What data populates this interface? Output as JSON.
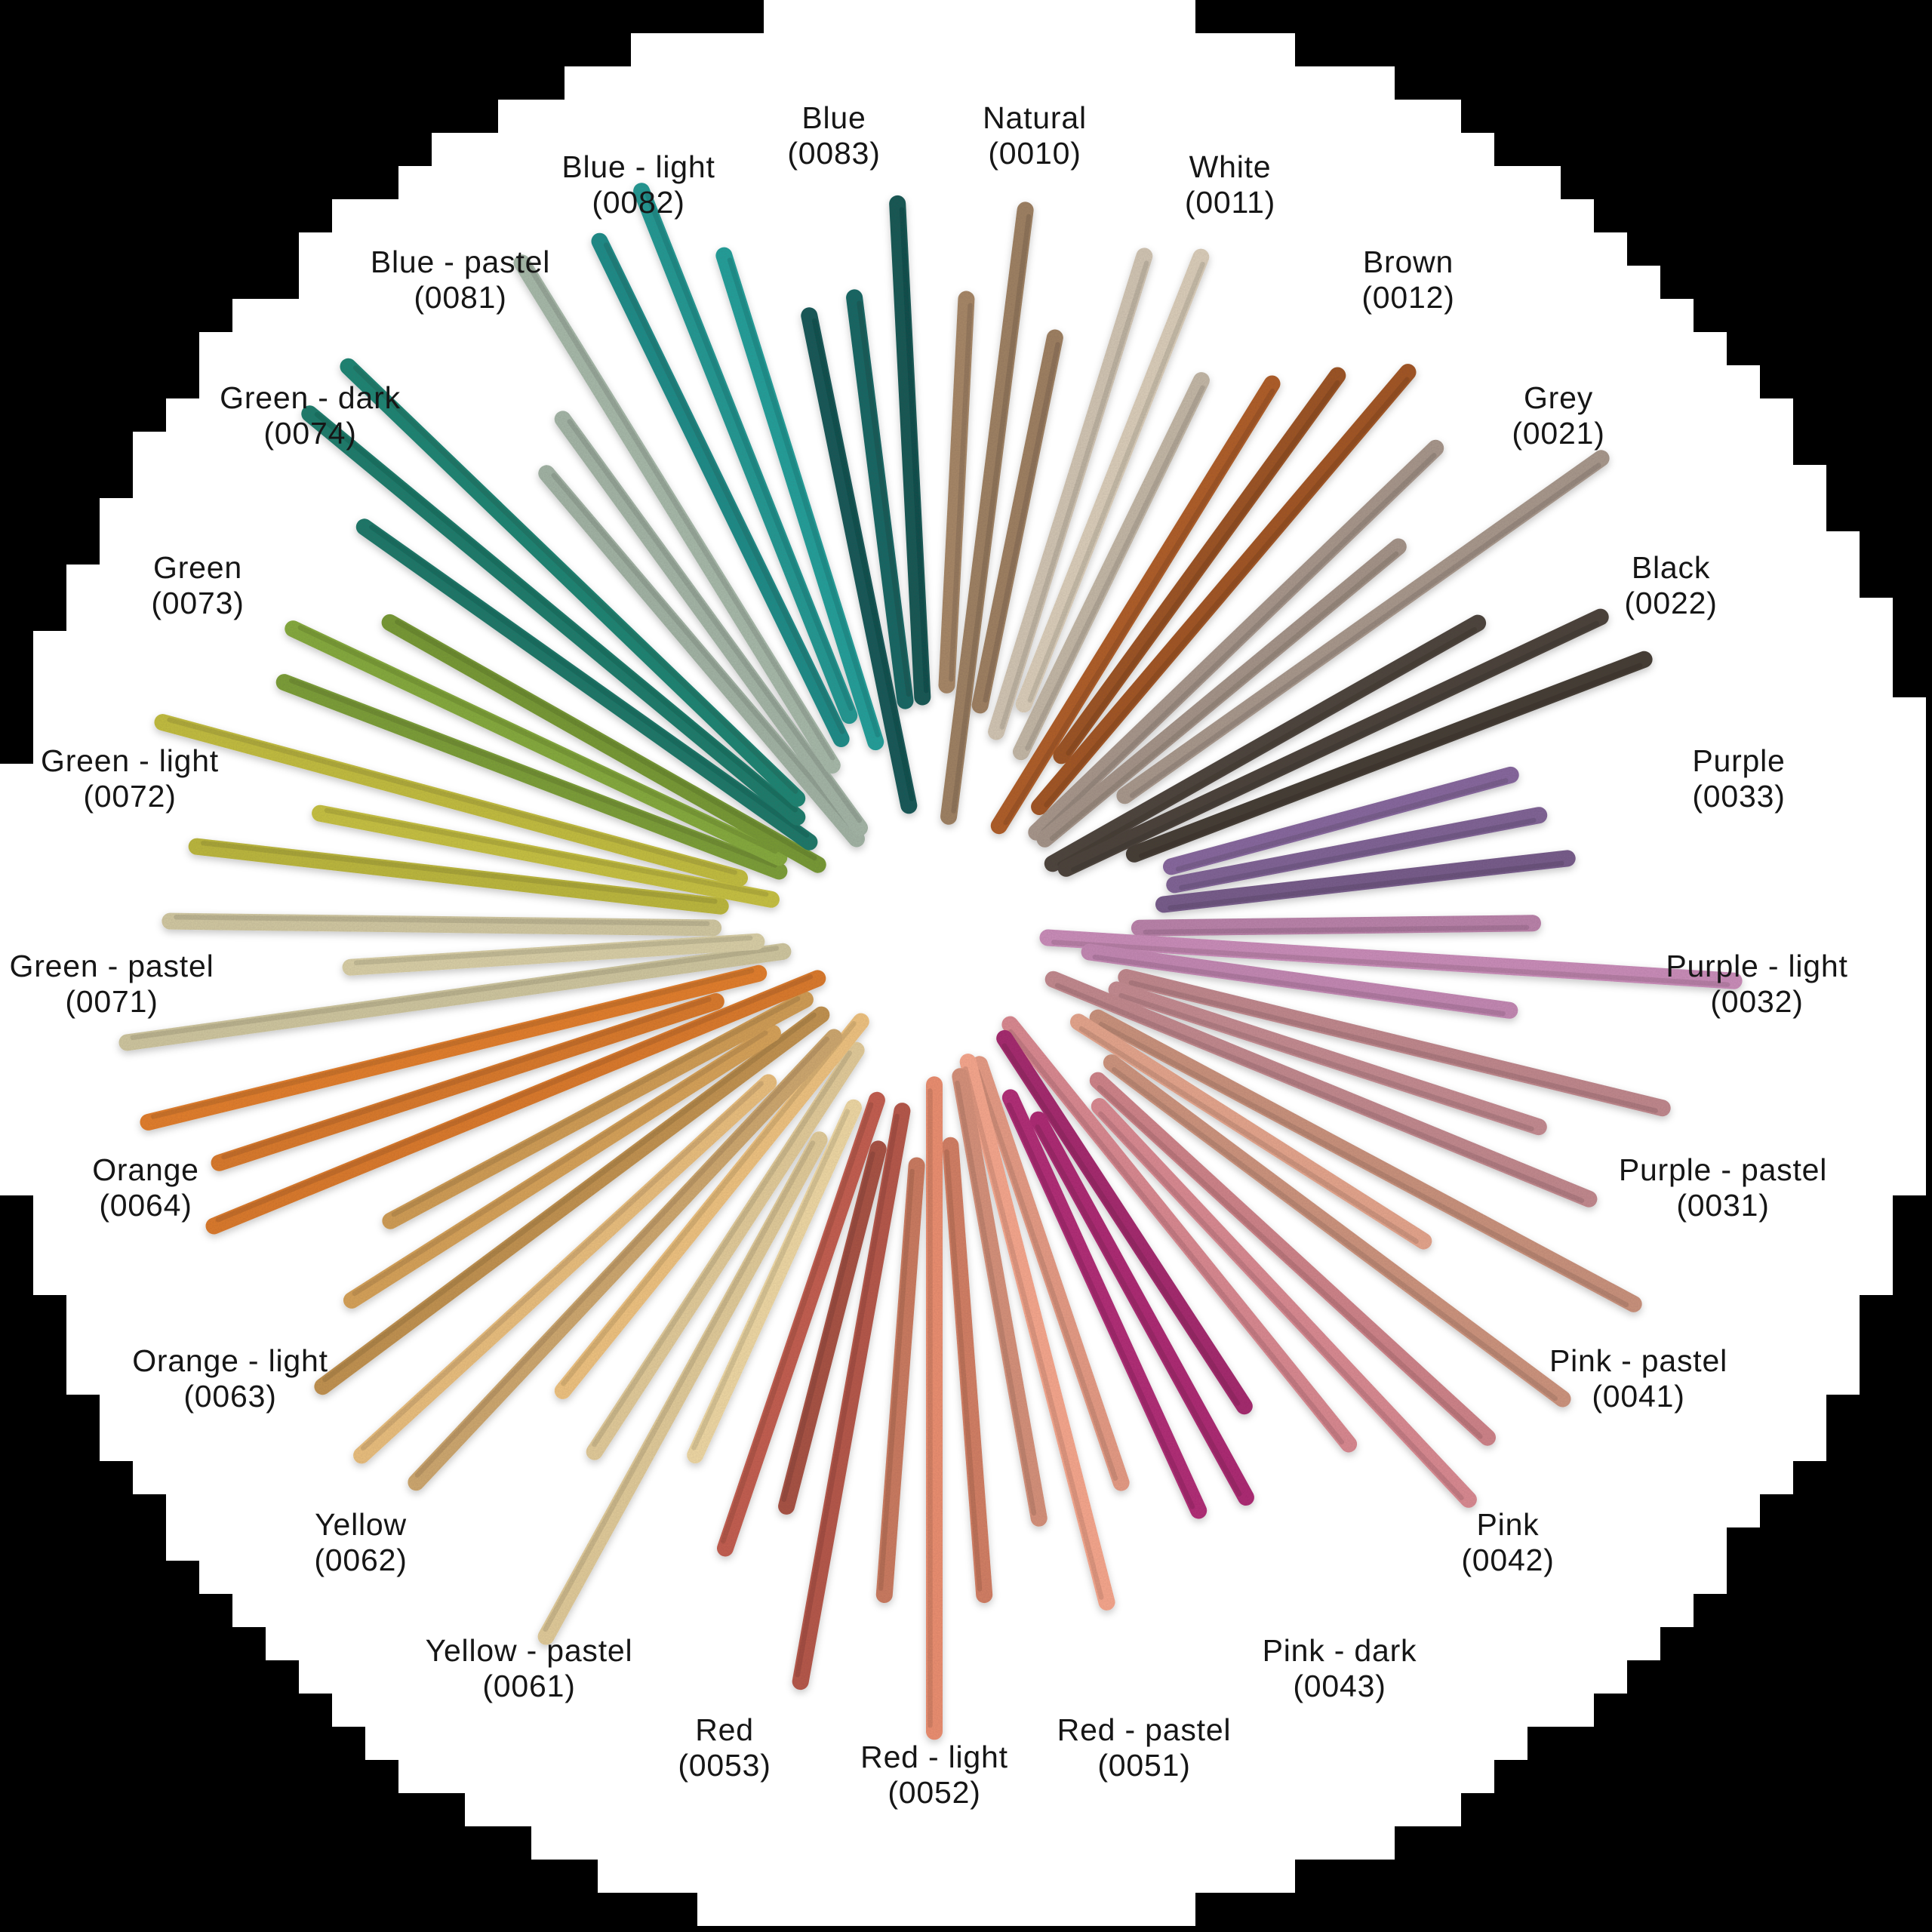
{
  "wheel": {
    "background_color": "#000000",
    "disc_color": "#ffffff",
    "label_color": "#161616",
    "sticks_per_group": 3,
    "groups": [
      {
        "label": "Natural",
        "code": "(0010)",
        "color": "#b1906f"
      },
      {
        "label": "White",
        "code": "(0011)",
        "color": "#d8cbb8"
      },
      {
        "label": "Brown",
        "code": "(0012)",
        "color": "#a75a28"
      },
      {
        "label": "Grey",
        "code": "(0021)",
        "color": "#a09086"
      },
      {
        "label": "Black",
        "code": "(0022)",
        "color": "#4a423c"
      },
      {
        "label": "Purple",
        "code": "(0033)",
        "color": "#86689d"
      },
      {
        "label": "Purple - light",
        "code": "(0032)",
        "color": "#c489b4"
      },
      {
        "label": "Purple - pastel",
        "code": "(0031)",
        "color": "#ca8f95"
      },
      {
        "label": "Pink - pastel",
        "code": "(0041)",
        "color": "#e2a38c"
      },
      {
        "label": "Pink",
        "code": "(0042)",
        "color": "#df8d95"
      },
      {
        "label": "Pink - dark",
        "code": "(0043)",
        "color": "#b82e7c"
      },
      {
        "label": "Red - pastel",
        "code": "(0051)",
        "color": "#eb9f88"
      },
      {
        "label": "Red - light",
        "code": "(0052)",
        "color": "#e38a6d"
      },
      {
        "label": "Red",
        "code": "(0053)",
        "color": "#bd5c4e"
      },
      {
        "label": "Yellow - pastel",
        "code": "(0061)",
        "color": "#eed7a3"
      },
      {
        "label": "Yellow",
        "code": "(0062)",
        "color": "#e3b97b"
      },
      {
        "label": "Orange - light",
        "code": "(0063)",
        "color": "#cf9c57"
      },
      {
        "label": "Orange",
        "code": "(0064)",
        "color": "#e98330"
      },
      {
        "label": "Green - pastel",
        "code": "(0071)",
        "color": "#d2c9a2"
      },
      {
        "label": "Green - light",
        "code": "(0072)",
        "color": "#c2bd42"
      },
      {
        "label": "Green",
        "code": "(0073)",
        "color": "#7da03a"
      },
      {
        "label": "Green - dark",
        "code": "(0074)",
        "color": "#1b8070"
      },
      {
        "label": "Blue - pastel",
        "code": "(0081)",
        "color": "#a0b2a3"
      },
      {
        "label": "Blue - light",
        "code": "(0082)",
        "color": "#219d98"
      },
      {
        "label": "Blue",
        "code": "(0083)",
        "color": "#14615f"
      }
    ]
  }
}
